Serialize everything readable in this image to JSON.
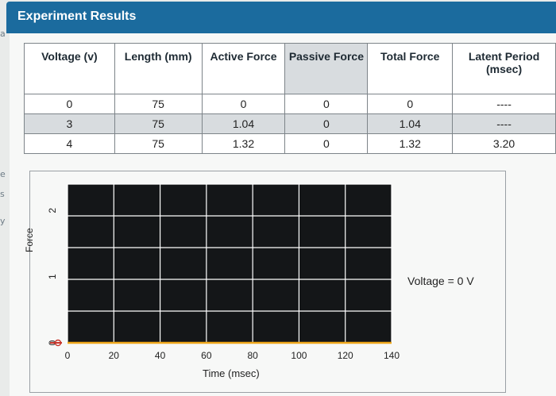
{
  "header": {
    "title": "Experiment Results"
  },
  "edge_marks": [
    "a",
    "e",
    "s",
    "y"
  ],
  "table": {
    "columns": [
      "Voltage (v)",
      "Length (mm)",
      "Active Force",
      "Passive Force",
      "Total Force",
      "Latent Period (msec)"
    ],
    "rows": [
      [
        "0",
        "75",
        "0",
        "0",
        "0",
        "----"
      ],
      [
        "3",
        "75",
        "1.04",
        "0",
        "1.04",
        "----"
      ],
      [
        "4",
        "75",
        "1.32",
        "0",
        "1.32",
        "3.20"
      ]
    ]
  },
  "graph": {
    "annotation": "Voltage = 0 V"
  },
  "chart_data": {
    "type": "line",
    "xlabel": "Time (msec)",
    "ylabel": "Force",
    "x_ticks": [
      0,
      20,
      40,
      60,
      80,
      100,
      120,
      140
    ],
    "y_ticks": [
      0,
      1,
      2
    ],
    "xlim": [
      0,
      140
    ],
    "ylim": [
      0,
      2.4
    ],
    "grid": true,
    "series": [
      {
        "x": [
          0,
          140
        ],
        "y": [
          0,
          0
        ],
        "color": "#f0a81c"
      }
    ],
    "marker": {
      "x": 0,
      "y": 0,
      "color": "#c8372d"
    },
    "plot_background": "#141618",
    "grid_color": "#ffffff"
  }
}
